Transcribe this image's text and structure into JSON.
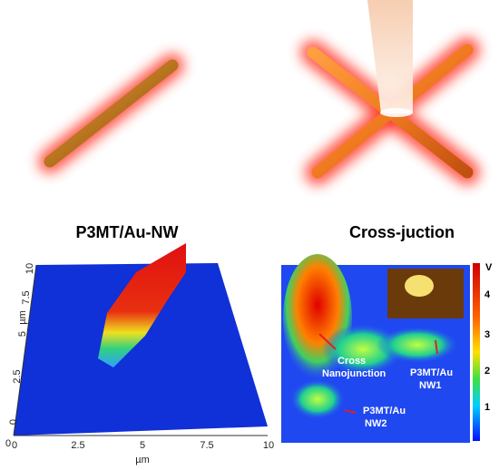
{
  "panels": [
    {
      "title": "P3MT/Au-NW",
      "x_ticks": [
        "0",
        "2.5",
        "5",
        "7.5",
        "10"
      ],
      "x_label": "µm",
      "y_ticks": [
        "10",
        "7.5",
        "5",
        "2.5",
        "0"
      ],
      "y_label": "µm",
      "y_corner": "0"
    },
    {
      "title": "Cross-juction",
      "annotations": [
        "Cross",
        "Nanojunction",
        "P3MT/Au",
        "NW1",
        "P3MT/Au",
        "NW2"
      ],
      "colorbar_unit": "V",
      "colorbar_ticks": [
        "4",
        "3",
        "2",
        "1"
      ]
    }
  ]
}
